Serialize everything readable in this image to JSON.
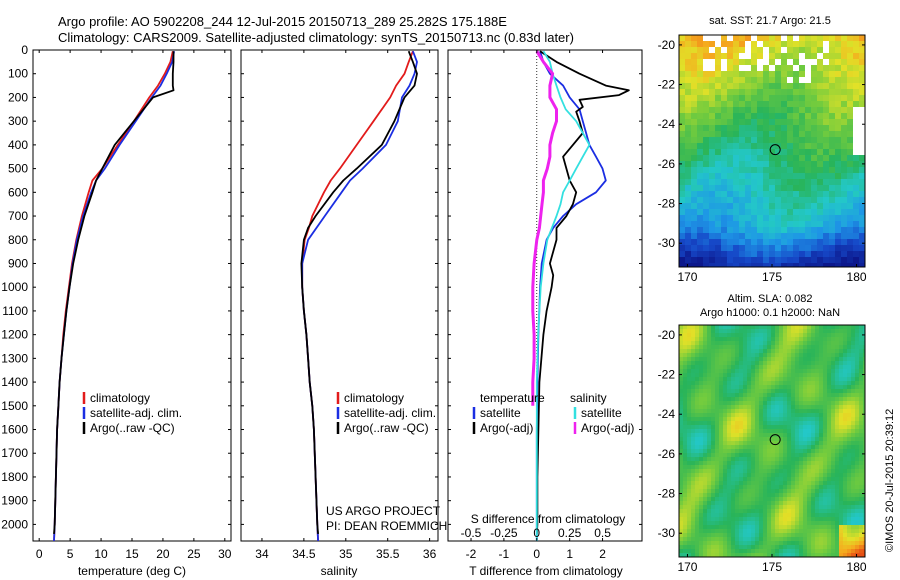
{
  "header": {
    "title_line1": "Argo profile: AO 5902208_244 12-Jul-2015 20150713_289 25.282S 175.188E",
    "title_line2": "Climatology: CARS2009. Satellite-adjusted climatology: synTS_20150713.nc (0.83d later)"
  },
  "project": {
    "line1": "US ARGO PROJECT",
    "line2": "PI: DEAN ROEMMICH"
  },
  "credit": "©IMOS 20-Jul-2015 20:39:12",
  "colors": {
    "climatology": "#e21b1b",
    "satellite": "#1b2ee2",
    "argo": "#000000",
    "sat_salinity": "#33e0e0",
    "argo_salinity": "#ee22ee"
  },
  "depth_axis": {
    "ticks": [
      "0",
      "100",
      "200",
      "300",
      "400",
      "500",
      "600",
      "700",
      "800",
      "900",
      "1000",
      "1100",
      "1200",
      "1300",
      "1400",
      "1500",
      "1600",
      "1700",
      "1800",
      "1900",
      "2000"
    ],
    "ylim": [
      2070,
      0
    ]
  },
  "chart_data": [
    {
      "id": "temperature",
      "type": "line",
      "xlabel": "temperature (deg C)",
      "ylabel": "",
      "xlim": [
        -1,
        31
      ],
      "ylim": [
        2070,
        0
      ],
      "xticks": [
        0,
        5,
        10,
        15,
        20,
        25,
        30
      ],
      "xtick_labels": [
        "0",
        "5",
        "10",
        "15",
        "20",
        "25",
        "30"
      ],
      "legend": {
        "placement": "bottom-center",
        "entries": [
          "climatology",
          "satellite-adj. clim.",
          "Argo(..raw -QC)"
        ]
      },
      "series": [
        {
          "name": "climatology",
          "color": "#e21b1b",
          "depth": [
            5,
            50,
            100,
            150,
            200,
            300,
            400,
            500,
            550,
            600,
            700,
            800,
            900,
            1000,
            1100,
            1200,
            1300,
            1400,
            1500,
            1600,
            1800,
            2000,
            2070
          ],
          "values": [
            21.6,
            21.2,
            20.3,
            19.2,
            17.8,
            15.3,
            12.7,
            10.2,
            8.6,
            8.0,
            6.9,
            6.0,
            5.3,
            4.8,
            4.3,
            3.9,
            3.6,
            3.3,
            3.1,
            2.9,
            2.7,
            2.5,
            2.4
          ]
        },
        {
          "name": "satellite-adj. clim.",
          "color": "#1b2ee2",
          "depth": [
            5,
            50,
            100,
            150,
            200,
            300,
            400,
            500,
            550,
            600,
            700,
            800,
            900,
            1000,
            1100,
            1200,
            1300,
            1400,
            1500,
            1600,
            1800,
            2000,
            2070
          ],
          "values": [
            21.8,
            21.5,
            20.6,
            19.6,
            18.2,
            15.6,
            13.0,
            10.6,
            9.2,
            8.4,
            7.1,
            6.1,
            5.4,
            4.9,
            4.4,
            4.0,
            3.6,
            3.3,
            3.1,
            2.9,
            2.7,
            2.5,
            2.4
          ]
        },
        {
          "name": "Argo(..raw -QC)",
          "color": "#000000",
          "depth": [
            5,
            50,
            100,
            150,
            170,
            200,
            300,
            400,
            500,
            550,
            600,
            700,
            800,
            900,
            1000,
            1100,
            1200,
            1300,
            1400,
            1500,
            1600,
            1800,
            2000,
            2040
          ],
          "values": [
            21.7,
            21.7,
            21.6,
            21.6,
            21.7,
            18.4,
            15.3,
            12.2,
            10.2,
            9.2,
            8.6,
            7.3,
            6.3,
            5.5,
            4.9,
            4.4,
            4.0,
            3.6,
            3.3,
            3.1,
            2.9,
            2.7,
            2.5,
            2.4
          ]
        }
      ]
    },
    {
      "id": "salinity",
      "type": "line",
      "xlabel": "salinity",
      "ylabel": "",
      "xlim": [
        33.75,
        36.1
      ],
      "ylim": [
        2070,
        0
      ],
      "xticks": [
        34,
        34.5,
        35,
        35.5,
        36
      ],
      "xtick_labels": [
        "34",
        "34.5",
        "35",
        "35.5",
        "36"
      ],
      "legend": {
        "placement": "bottom-center",
        "entries": [
          "climatology",
          "satellite-adj. clim.",
          "Argo(..raw -QC)"
        ]
      },
      "series": [
        {
          "name": "climatology",
          "color": "#e21b1b",
          "depth": [
            5,
            50,
            100,
            150,
            200,
            300,
            400,
            500,
            550,
            600,
            700,
            750,
            800,
            900,
            1000,
            1100,
            1200,
            1300,
            1400,
            1500,
            1600,
            1800,
            2000,
            2070
          ],
          "values": [
            35.8,
            35.75,
            35.7,
            35.6,
            35.53,
            35.33,
            35.13,
            34.93,
            34.82,
            34.74,
            34.6,
            34.56,
            34.51,
            34.48,
            34.48,
            34.5,
            34.53,
            34.55,
            34.57,
            34.6,
            34.62,
            34.64,
            34.66,
            34.67
          ]
        },
        {
          "name": "satellite-adj. clim.",
          "color": "#1b2ee2",
          "depth": [
            5,
            50,
            100,
            150,
            200,
            300,
            400,
            500,
            550,
            600,
            700,
            800,
            900,
            1000,
            1100,
            1200,
            1300,
            1400,
            1500,
            1600,
            1800,
            2000,
            2070
          ],
          "values": [
            35.8,
            35.85,
            35.82,
            35.76,
            35.67,
            35.62,
            35.48,
            35.2,
            35.05,
            34.95,
            34.75,
            34.55,
            34.48,
            34.48,
            34.5,
            34.53,
            34.55,
            34.57,
            34.6,
            34.62,
            34.64,
            34.66,
            34.67
          ]
        },
        {
          "name": "Argo(..raw -QC)",
          "color": "#000000",
          "depth": [
            5,
            50,
            100,
            150,
            200,
            300,
            400,
            500,
            550,
            600,
            700,
            750,
            800,
            900,
            1000,
            1100,
            1200,
            1300,
            1400,
            1500,
            1600,
            1800,
            2000,
            2040
          ],
          "values": [
            35.75,
            35.8,
            35.85,
            35.82,
            35.7,
            35.58,
            35.43,
            35.13,
            34.97,
            34.85,
            34.64,
            34.55,
            34.5,
            34.47,
            34.48,
            34.5,
            34.53,
            34.55,
            34.57,
            34.6,
            34.62,
            34.64,
            34.66,
            34.67
          ]
        }
      ]
    },
    {
      "id": "differences",
      "type": "line",
      "xlabel": "T difference from climatology",
      "x2label": "S difference from climatology",
      "xlim": [
        -2.7,
        3.2
      ],
      "x2lim": [
        -0.675,
        0.8
      ],
      "ylim": [
        2070,
        0
      ],
      "xticks": [
        -2,
        -1,
        0,
        1,
        2
      ],
      "xtick_labels": [
        "-2",
        "-1",
        "0",
        "1",
        "2"
      ],
      "x2ticks": [
        -0.5,
        -0.25,
        0,
        0.25,
        0.5
      ],
      "x2tick_labels": [
        "-0.5",
        "-0.25",
        "0",
        "0.25",
        "0.5"
      ],
      "legend": {
        "placement": "bottom-center",
        "temperature_title": "temperature",
        "salinity_title": "salinity",
        "entries": [
          "satellite",
          "Argo(-adj)",
          "satellite",
          "Argo(-adj)"
        ]
      },
      "series": [
        {
          "name": "temperature satellite",
          "axis": "T",
          "color": "#1b2ee2",
          "depth": [
            5,
            50,
            100,
            150,
            200,
            250,
            300,
            350,
            400,
            450,
            500,
            550,
            600,
            650,
            700,
            750,
            800,
            900,
            1000,
            1200,
            1400,
            1600,
            1800,
            2000,
            2070
          ],
          "values": [
            0.1,
            0.2,
            0.4,
            0.8,
            1.0,
            1.3,
            1.4,
            1.5,
            1.6,
            1.8,
            2.0,
            2.1,
            1.8,
            1.2,
            0.8,
            0.5,
            0.3,
            0.15,
            0.1,
            0.05,
            0.02,
            0.0,
            0.0,
            0.0,
            0.0
          ]
        },
        {
          "name": "temperature Argo(-adj)",
          "axis": "T",
          "color": "#000000",
          "depth": [
            5,
            50,
            100,
            150,
            170,
            190,
            210,
            240,
            260,
            300,
            350,
            400,
            450,
            500,
            550,
            600,
            650,
            700,
            750,
            800,
            850,
            900,
            950,
            1000,
            1100,
            1200,
            1400,
            1600,
            1800,
            2000,
            2040
          ],
          "values": [
            0.1,
            0.6,
            1.3,
            2.1,
            2.8,
            2.5,
            1.3,
            1.4,
            1.2,
            1.3,
            1.4,
            1.1,
            0.8,
            0.9,
            1.0,
            1.2,
            1.1,
            0.9,
            0.6,
            0.6,
            0.5,
            0.4,
            0.5,
            0.45,
            0.3,
            0.2,
            0.08,
            0.05,
            0.02,
            0.02,
            0.0
          ]
        },
        {
          "name": "salinity satellite",
          "axis": "S",
          "color": "#33e0e0",
          "depth": [
            5,
            50,
            100,
            150,
            200,
            250,
            300,
            350,
            400,
            450,
            500,
            550,
            600,
            650,
            700,
            800,
            900,
            1000,
            1200,
            1400,
            1600,
            1800,
            2000,
            2070
          ],
          "values": [
            0.05,
            0.1,
            0.12,
            0.15,
            0.18,
            0.22,
            0.3,
            0.35,
            0.4,
            0.35,
            0.3,
            0.25,
            0.2,
            0.18,
            0.15,
            0.08,
            0.05,
            0.03,
            0.01,
            0.0,
            0.0,
            0.0,
            0.0,
            0.0
          ]
        },
        {
          "name": "salinity Argo(-adj)",
          "axis": "S",
          "color": "#ee22ee",
          "depth": [
            5,
            50,
            100,
            150,
            200,
            250,
            300,
            350,
            400,
            450,
            500,
            550,
            600,
            650,
            700,
            750,
            800,
            900,
            1000,
            1100,
            1200,
            1300,
            1400,
            1500
          ],
          "values": [
            0.0,
            0.05,
            0.12,
            0.1,
            0.1,
            0.15,
            0.15,
            0.12,
            0.1,
            0.1,
            0.08,
            0.05,
            0.05,
            0.04,
            0.03,
            0.02,
            0.0,
            -0.02,
            -0.03,
            -0.03,
            -0.02,
            -0.02,
            -0.03,
            -0.03
          ]
        }
      ]
    }
  ],
  "maps": {
    "sst": {
      "title": "sat. SST: 21.7 Argo: 21.5",
      "xticks": [
        "170",
        "175",
        "180"
      ],
      "yticks": [
        "-20",
        "-22",
        "-24",
        "-26",
        "-28",
        "-30"
      ],
      "lon_range": [
        169.5,
        180.5
      ],
      "lat_range": [
        -31.2,
        -19.5
      ],
      "marker": {
        "lon": 175.188,
        "lat": -25.282
      }
    },
    "sla": {
      "title_line1": "Altim. SLA: 0.082",
      "title_line2": "Argo h1000: 0.1 h2000: NaN",
      "xticks": [
        "170",
        "175",
        "180"
      ],
      "yticks": [
        "-20",
        "-22",
        "-24",
        "-26",
        "-28",
        "-30"
      ],
      "lon_range": [
        169.5,
        180.5
      ],
      "lat_range": [
        -31.2,
        -19.5
      ],
      "marker": {
        "lon": 175.188,
        "lat": -25.282
      }
    }
  }
}
